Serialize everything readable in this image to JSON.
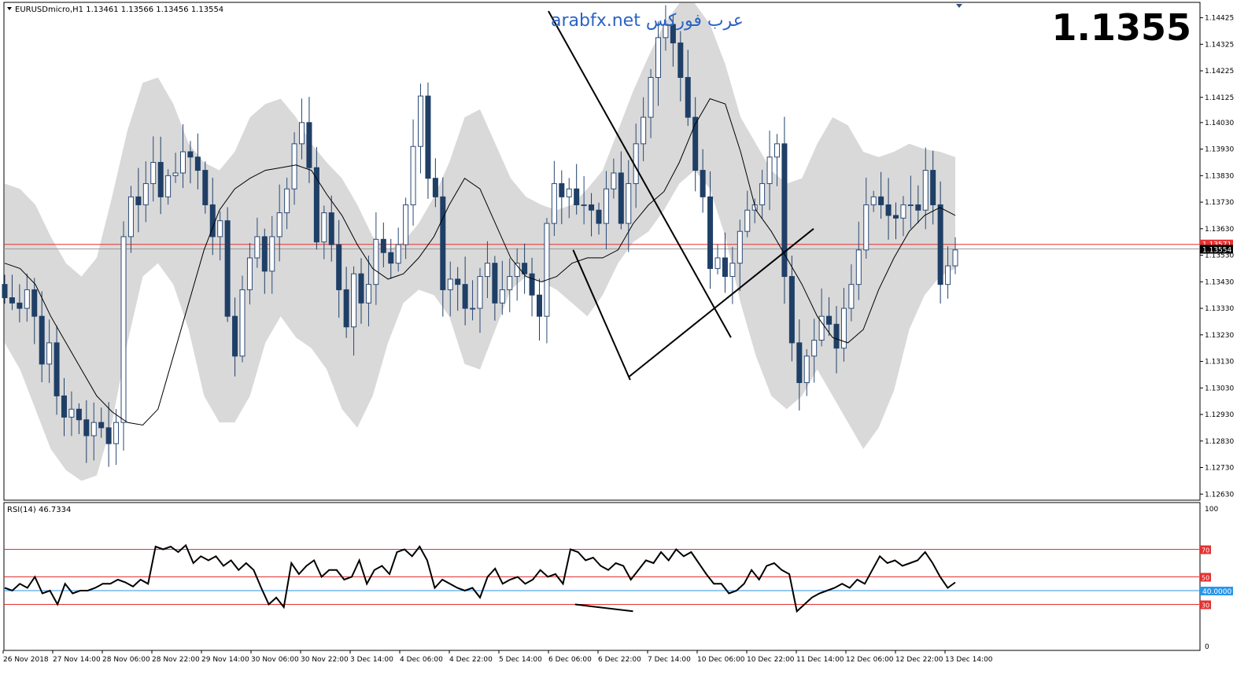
{
  "symbol_header": "EURUSDmicro,H1  1.13461 1.13566 1.13456 1.13554",
  "watermark": "arabfx.net عرب فوركس",
  "big_price": "1.1355",
  "price_tag": "1.13554",
  "red_level_tag": "1.13571",
  "rsi_header": "RSI(14) 46.7334",
  "rsi_current_tag": "40.0000",
  "colors": {
    "bull_candle": "#2b4a77",
    "bear_candle": "#1f3f66",
    "band_fill": "#d9d9d9",
    "rsi_level": "#e43131",
    "rsi_40": "#2996e9",
    "price_tag_bg": "#000000",
    "watermark": "#2a63c5"
  },
  "chart_data": [
    {
      "type": "candlestick",
      "title": "EURUSDmicro,H1",
      "y_ticks": [
        "1.14425",
        "1.14325",
        "1.14225",
        "1.14125",
        "1.14030",
        "1.13930",
        "1.13830",
        "1.13730",
        "1.13630",
        "1.13530",
        "1.13430",
        "1.13330",
        "1.13230",
        "1.13130",
        "1.13030",
        "1.12930",
        "1.12830",
        "1.12730",
        "1.12630"
      ],
      "y_tick_values": [
        1.14425,
        1.14325,
        1.14225,
        1.14125,
        1.1403,
        1.1393,
        1.1383,
        1.1373,
        1.1363,
        1.1353,
        1.1343,
        1.1333,
        1.1323,
        1.1313,
        1.1303,
        1.1293,
        1.1283,
        1.1273,
        1.1263
      ],
      "ylim": [
        1.1261,
        1.1448
      ],
      "x_ticks": [
        "26 Nov 2018",
        "27 Nov 14:00",
        "28 Nov 06:00",
        "28 Nov 22:00",
        "29 Nov 14:00",
        "30 Nov 06:00",
        "30 Nov 22:00",
        "3 Dec 14:00",
        "4 Dec 06:00",
        "4 Dec 22:00",
        "5 Dec 14:00",
        "6 Dec 06:00",
        "6 Dec 22:00",
        "7 Dec 14:00",
        "10 Dec 06:00",
        "10 Dec 22:00",
        "11 Dec 14:00",
        "12 Dec 06:00",
        "12 Dec 22:00",
        "13 Dec 14:00"
      ],
      "close_path": [
        1.1337,
        1.1335,
        1.1333,
        1.134,
        1.133,
        1.1312,
        1.132,
        1.13,
        1.1292,
        1.1295,
        1.1291,
        1.1285,
        1.129,
        1.1288,
        1.1282,
        1.129,
        1.136,
        1.1375,
        1.1372,
        1.138,
        1.1388,
        1.1375,
        1.1383,
        1.1384,
        1.1392,
        1.139,
        1.1385,
        1.1372,
        1.136,
        1.1366,
        1.133,
        1.1315,
        1.134,
        1.1352,
        1.136,
        1.1347,
        1.136,
        1.1369,
        1.1378,
        1.1395,
        1.1403,
        1.1386,
        1.1358,
        1.1369,
        1.1357,
        1.134,
        1.1326,
        1.1346,
        1.1335,
        1.1342,
        1.1359,
        1.1354,
        1.135,
        1.1357,
        1.1372,
        1.1394,
        1.1413,
        1.1382,
        1.1375,
        1.134,
        1.1344,
        1.1342,
        1.1333,
        1.1333,
        1.1345,
        1.135,
        1.1335,
        1.134,
        1.1345,
        1.135,
        1.1346,
        1.1338,
        1.133,
        1.1365,
        1.138,
        1.1375,
        1.1378,
        1.1372,
        1.1372,
        1.137,
        1.1365,
        1.1378,
        1.1384,
        1.1365,
        1.138,
        1.1395,
        1.1405,
        1.142,
        1.1435,
        1.144,
        1.1433,
        1.142,
        1.1405,
        1.1385,
        1.1375,
        1.1348,
        1.1352,
        1.1345,
        1.135,
        1.1362,
        1.137,
        1.1372,
        1.138,
        1.139,
        1.1395,
        1.1345,
        1.132,
        1.1305,
        1.1315,
        1.1321,
        1.133,
        1.1327,
        1.1318,
        1.1333,
        1.1342,
        1.1355,
        1.1372,
        1.1375,
        1.1372,
        1.1368,
        1.1367,
        1.1372,
        1.1372,
        1.137,
        1.1385,
        1.1372,
        1.1342,
        1.1349,
        1.1355
      ],
      "ma_path": [
        1.135,
        1.1348,
        1.1342,
        1.133,
        1.132,
        1.131,
        1.13,
        1.1294,
        1.129,
        1.1289,
        1.1295,
        1.1315,
        1.1335,
        1.1355,
        1.137,
        1.1378,
        1.1382,
        1.1385,
        1.1386,
        1.1387,
        1.1385,
        1.1376,
        1.1368,
        1.1357,
        1.1348,
        1.1344,
        1.1346,
        1.1352,
        1.136,
        1.1372,
        1.1382,
        1.1378,
        1.1365,
        1.1352,
        1.1345,
        1.1343,
        1.1345,
        1.135,
        1.1352,
        1.1352,
        1.1355,
        1.1365,
        1.1372,
        1.1377,
        1.1388,
        1.1402,
        1.1412,
        1.141,
        1.1392,
        1.137,
        1.1362,
        1.1352,
        1.1342,
        1.133,
        1.1322,
        1.132,
        1.1325,
        1.134,
        1.1352,
        1.1362,
        1.1368,
        1.1371,
        1.1368
      ],
      "band_upper": [
        1.138,
        1.1378,
        1.1372,
        1.136,
        1.135,
        1.1345,
        1.1352,
        1.1375,
        1.14,
        1.1418,
        1.142,
        1.141,
        1.1395,
        1.1388,
        1.1385,
        1.1392,
        1.1405,
        1.141,
        1.1412,
        1.1405,
        1.1395,
        1.1388,
        1.1382,
        1.1372,
        1.136,
        1.1355,
        1.1358,
        1.1365,
        1.1375,
        1.1388,
        1.1405,
        1.1408,
        1.1395,
        1.1382,
        1.1375,
        1.1372,
        1.137,
        1.1372,
        1.1378,
        1.1385,
        1.14,
        1.1415,
        1.1428,
        1.144,
        1.1448,
        1.1448,
        1.144,
        1.1425,
        1.1405,
        1.1395,
        1.1385,
        1.138,
        1.1382,
        1.1395,
        1.1405,
        1.1402,
        1.1392,
        1.139,
        1.1392,
        1.1395,
        1.1393,
        1.1392,
        1.139
      ],
      "band_lower": [
        1.132,
        1.131,
        1.1295,
        1.128,
        1.1272,
        1.1268,
        1.127,
        1.129,
        1.132,
        1.1345,
        1.135,
        1.1342,
        1.1325,
        1.13,
        1.129,
        1.129,
        1.13,
        1.132,
        1.133,
        1.1322,
        1.1318,
        1.131,
        1.1295,
        1.1288,
        1.13,
        1.132,
        1.1335,
        1.134,
        1.1338,
        1.133,
        1.1312,
        1.131,
        1.1325,
        1.134,
        1.1345,
        1.1343,
        1.134,
        1.1335,
        1.133,
        1.1338,
        1.135,
        1.1358,
        1.1362,
        1.137,
        1.138,
        1.1385,
        1.1378,
        1.136,
        1.1335,
        1.1315,
        1.13,
        1.1295,
        1.13,
        1.131,
        1.13,
        1.129,
        1.128,
        1.1288,
        1.1302,
        1.1325,
        1.1338,
        1.1345,
        1.1348
      ],
      "horizontal_lines": [
        1.13571,
        1.13554
      ],
      "trendlines": [
        {
          "from": [
            1.1445,
            0.572
          ],
          "to": [
            1.1322,
            0.764
          ]
        },
        {
          "from": [
            1.1355,
            0.598
          ],
          "to": [
            1.1306,
            0.658
          ]
        },
        {
          "from": [
            1.1307,
            0.656
          ],
          "to": [
            1.1363,
            0.851
          ]
        }
      ]
    },
    {
      "type": "line",
      "title": "RSI(14) 46.7334",
      "y_ticks": [
        "100",
        "70",
        "50",
        "30",
        "0"
      ],
      "levels": [
        70,
        50,
        40,
        30
      ],
      "ylim": [
        0,
        100
      ],
      "series": [
        {
          "values": [
            42,
            40,
            45,
            42,
            50,
            38,
            40,
            30,
            45,
            38,
            40,
            40,
            42,
            45,
            45,
            48,
            46,
            43,
            48,
            45,
            72,
            70,
            72,
            68,
            73,
            60,
            65,
            62,
            65,
            58,
            62,
            55,
            60,
            55,
            42,
            30,
            35,
            28,
            60,
            52,
            58,
            62,
            50,
            55,
            55,
            48,
            50,
            62,
            45,
            55,
            58,
            52,
            68,
            70,
            65,
            72,
            62,
            42,
            48,
            45,
            42,
            40,
            42,
            35,
            50,
            56,
            45,
            48,
            50,
            45,
            48,
            55,
            50,
            52,
            45,
            70,
            68,
            62,
            64,
            58,
            55,
            60,
            58,
            48,
            55,
            62,
            60,
            68,
            62,
            70,
            65,
            68,
            60,
            52,
            45,
            45,
            38,
            40,
            45,
            55,
            48,
            58,
            60,
            55,
            52,
            25,
            30,
            35,
            38,
            40,
            42,
            45,
            42,
            48,
            45,
            55,
            65,
            60,
            62,
            58,
            60,
            62,
            68,
            60,
            50,
            42,
            46
          ]
        }
      ],
      "divergence_line": {
        "from": [
          30,
          0.6
        ],
        "to": [
          25,
          0.661
        ]
      }
    }
  ]
}
